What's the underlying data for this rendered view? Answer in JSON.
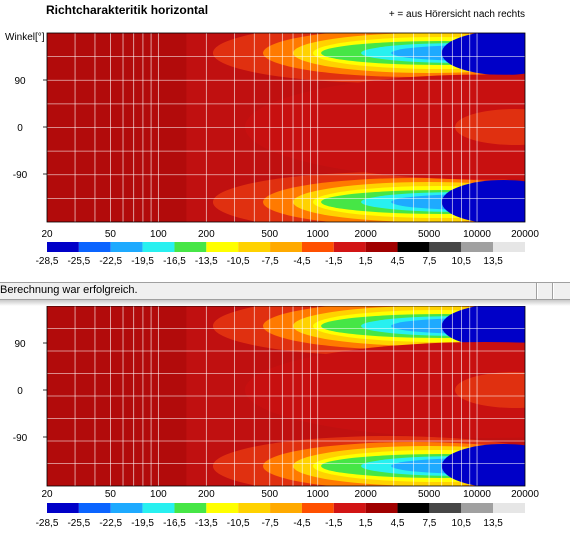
{
  "page": {
    "title": "Richtcharakteritik horizontal",
    "sign_note": "+ = aus Hörersicht nach rechts"
  },
  "status": {
    "message": "Berechnung war erfolgreich."
  },
  "chart_data": [
    {
      "type": "heatmap",
      "title": "Richtcharakteritik horizontal",
      "ylabel": "Winkel[°]",
      "xlabel": "",
      "x_scale": "log",
      "xlim": [
        20,
        20000
      ],
      "ylim": [
        -180,
        180
      ],
      "x_ticks": [
        20,
        50,
        100,
        200,
        500,
        1000,
        2000,
        5000,
        10000,
        20000
      ],
      "x_tick_labels": [
        "20",
        "50",
        "100",
        "200",
        "500",
        "1000",
        "2000",
        "5000",
        "10000",
        "20000"
      ],
      "y_ticks": [
        90,
        0,
        -90
      ],
      "y_tick_labels": [
        "90",
        "0",
        "-90"
      ],
      "grid": true,
      "colorbar": {
        "placement": "bottom",
        "labels": [
          "-28,5",
          "-25,5",
          "-22,5",
          "-19,5",
          "-16,5",
          "-13,5",
          "-10,5",
          "-7,5",
          "-4,5",
          "-1,5",
          "1,5",
          "4,5",
          "7,5",
          "10,5",
          "13,5"
        ],
        "colors": [
          "#0000c8",
          "#0a64ff",
          "#1eaaff",
          "#28f0f0",
          "#46e646",
          "#ffff00",
          "#ffd200",
          "#ffaa00",
          "#ff5000",
          "#d21414",
          "#a00000",
          "#000000",
          "#464646",
          "#a0a0a0",
          "#e6e6e6"
        ]
      }
    },
    {
      "type": "heatmap",
      "title": "",
      "ylabel": "",
      "xlabel": "",
      "x_scale": "log",
      "xlim": [
        20,
        20000
      ],
      "ylim": [
        -180,
        180
      ],
      "x_ticks": [
        20,
        50,
        100,
        200,
        500,
        1000,
        2000,
        5000,
        10000,
        20000
      ],
      "x_tick_labels": [
        "20",
        "50",
        "100",
        "200",
        "500",
        "1000",
        "2000",
        "5000",
        "10000",
        "20000"
      ],
      "y_ticks": [
        90,
        0,
        -90
      ],
      "y_tick_labels": [
        "90",
        "0",
        "-90"
      ],
      "grid": true,
      "colorbar": {
        "placement": "bottom",
        "labels": [
          "-28,5",
          "-25,5",
          "-22,5",
          "-19,5",
          "-16,5",
          "-13,5",
          "-10,5",
          "-7,5",
          "-4,5",
          "-1,5",
          "1,5",
          "4,5",
          "7,5",
          "10,5",
          "13,5"
        ],
        "colors": [
          "#0000c8",
          "#0a64ff",
          "#1eaaff",
          "#28f0f0",
          "#46e646",
          "#ffff00",
          "#ffd200",
          "#ffaa00",
          "#ff5000",
          "#d21414",
          "#a00000",
          "#000000",
          "#464646",
          "#a0a0a0",
          "#e6e6e6"
        ]
      }
    }
  ]
}
